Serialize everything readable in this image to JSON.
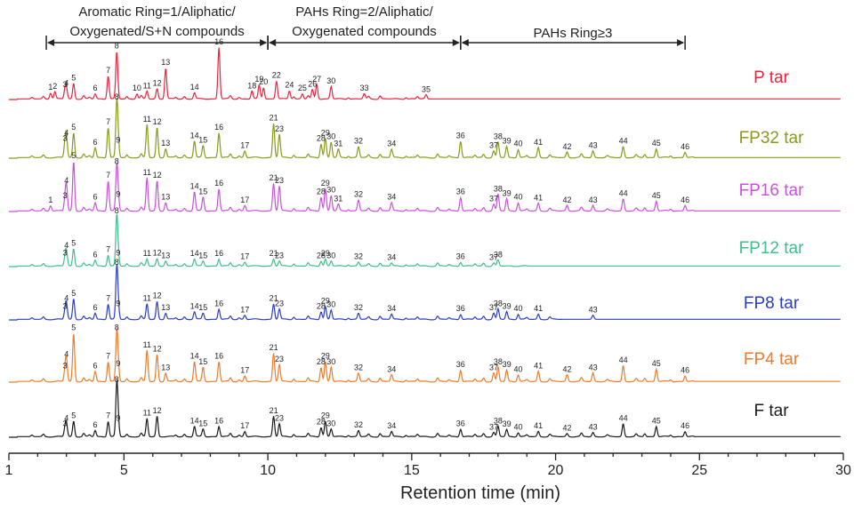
{
  "chart_data": {
    "type": "line",
    "xlabel": "Retention time (min)",
    "xlim": [
      1,
      30
    ],
    "xticks": [
      1,
      5,
      10,
      15,
      20,
      25,
      30
    ],
    "regions": [
      {
        "label_lines": [
          "Aromatic Ring=1/Aliphatic/",
          "Oxygenated/S+N compounds"
        ],
        "x_start": 2.3,
        "x_end": 10.0
      },
      {
        "label_lines": [
          "PAHs Ring=2/Aliphatic/",
          "Oxygenated compounds"
        ],
        "x_start": 10.0,
        "x_end": 16.7
      },
      {
        "label_lines": [
          "PAHs Ring≥3"
        ],
        "x_start": 16.7,
        "x_end": 24.5
      }
    ],
    "peak_times": {
      "1": 2.45,
      "2": 2.6,
      "3": 2.95,
      "4": 3.0,
      "5": 3.25,
      "6": 4.0,
      "7": 4.45,
      "8": 4.75,
      "9": 4.8,
      "10": 5.45,
      "11": 5.8,
      "12": 6.15,
      "13": 6.45,
      "14": 7.45,
      "15": 7.75,
      "16": 8.3,
      "17": 9.2,
      "18": 9.45,
      "19": 9.7,
      "20": 9.85,
      "21": 10.2,
      "22": 10.3,
      "23": 10.4,
      "24": 10.75,
      "25": 11.2,
      "26": 11.55,
      "27": 11.7,
      "28": 11.85,
      "29": 12.0,
      "30": 12.2,
      "31": 12.45,
      "32": 13.15,
      "33": 13.35,
      "34": 14.3,
      "35": 15.5,
      "36": 16.7,
      "37": 17.85,
      "38": 18.0,
      "39": 18.3,
      "40": 18.7,
      "41": 19.4,
      "42": 20.4,
      "43": 21.3,
      "44": 22.35,
      "45": 23.5,
      "46": 24.5
    },
    "series": [
      {
        "name": "P tar",
        "color": "#f2203a",
        "peaks": [
          [
            1,
            0.12
          ],
          [
            2,
            0.14
          ],
          [
            3,
            0.17
          ],
          [
            4,
            0.2
          ],
          [
            5,
            0.3
          ],
          [
            6,
            0.1
          ],
          [
            7,
            0.45
          ],
          [
            8,
            0.92
          ],
          [
            10,
            0.1
          ],
          [
            11,
            0.15
          ],
          [
            12,
            0.2
          ],
          [
            13,
            0.6
          ],
          [
            14,
            0.12
          ],
          [
            16,
            1.0
          ],
          [
            18,
            0.15
          ],
          [
            19,
            0.28
          ],
          [
            20,
            0.22
          ],
          [
            22,
            0.35
          ],
          [
            24,
            0.16
          ],
          [
            25,
            0.1
          ],
          [
            26,
            0.18
          ],
          [
            27,
            0.28
          ],
          [
            30,
            0.24
          ],
          [
            33,
            0.1
          ],
          [
            35,
            0.08
          ]
        ]
      },
      {
        "name": "FP32 tar",
        "color": "#8a9a1a",
        "peaks": [
          [
            3,
            0.25
          ],
          [
            4,
            0.35
          ],
          [
            5,
            0.45
          ],
          [
            6,
            0.18
          ],
          [
            7,
            0.55
          ],
          [
            8,
            1.0
          ],
          [
            9,
            0.22
          ],
          [
            11,
            0.6
          ],
          [
            12,
            0.55
          ],
          [
            13,
            0.16
          ],
          [
            14,
            0.3
          ],
          [
            15,
            0.22
          ],
          [
            16,
            0.45
          ],
          [
            17,
            0.12
          ],
          [
            21,
            0.62
          ],
          [
            23,
            0.42
          ],
          [
            28,
            0.25
          ],
          [
            29,
            0.35
          ],
          [
            30,
            0.28
          ],
          [
            31,
            0.15
          ],
          [
            32,
            0.2
          ],
          [
            34,
            0.15
          ],
          [
            36,
            0.3
          ],
          [
            37,
            0.12
          ],
          [
            38,
            0.28
          ],
          [
            39,
            0.2
          ],
          [
            40,
            0.15
          ],
          [
            41,
            0.18
          ],
          [
            42,
            0.1
          ],
          [
            43,
            0.12
          ],
          [
            44,
            0.2
          ],
          [
            45,
            0.16
          ],
          [
            46,
            0.1
          ]
        ]
      },
      {
        "name": "FP16 tar",
        "color": "#cc4fe0",
        "peaks": [
          [
            1,
            0.1
          ],
          [
            3,
            0.18
          ],
          [
            4,
            0.45
          ],
          [
            5,
            0.9
          ],
          [
            6,
            0.15
          ],
          [
            7,
            0.55
          ],
          [
            8,
            0.8
          ],
          [
            9,
            0.2
          ],
          [
            11,
            0.6
          ],
          [
            12,
            0.55
          ],
          [
            13,
            0.15
          ],
          [
            14,
            0.35
          ],
          [
            15,
            0.25
          ],
          [
            16,
            0.4
          ],
          [
            17,
            0.1
          ],
          [
            21,
            0.5
          ],
          [
            23,
            0.45
          ],
          [
            28,
            0.25
          ],
          [
            29,
            0.4
          ],
          [
            30,
            0.28
          ],
          [
            31,
            0.12
          ],
          [
            32,
            0.2
          ],
          [
            34,
            0.15
          ],
          [
            36,
            0.25
          ],
          [
            37,
            0.12
          ],
          [
            38,
            0.3
          ],
          [
            39,
            0.22
          ],
          [
            40,
            0.15
          ],
          [
            41,
            0.14
          ],
          [
            42,
            0.1
          ],
          [
            43,
            0.1
          ],
          [
            44,
            0.22
          ],
          [
            45,
            0.18
          ],
          [
            46,
            0.1
          ]
        ]
      },
      {
        "name": "FP12 tar",
        "color": "#3dbf8a",
        "peaks": [
          [
            3,
            0.15
          ],
          [
            4,
            0.3
          ],
          [
            5,
            0.35
          ],
          [
            6,
            0.12
          ],
          [
            7,
            0.22
          ],
          [
            8,
            1.0
          ],
          [
            9,
            0.15
          ],
          [
            11,
            0.14
          ],
          [
            12,
            0.15
          ],
          [
            13,
            0.1
          ],
          [
            14,
            0.14
          ],
          [
            15,
            0.1
          ],
          [
            16,
            0.14
          ],
          [
            17,
            0.08
          ],
          [
            21,
            0.14
          ],
          [
            23,
            0.1
          ],
          [
            28,
            0.1
          ],
          [
            29,
            0.14
          ],
          [
            30,
            0.1
          ],
          [
            32,
            0.08
          ],
          [
            34,
            0.06
          ],
          [
            36,
            0.08
          ],
          [
            37,
            0.06
          ],
          [
            38,
            0.12
          ]
        ]
      },
      {
        "name": "FP8 tar",
        "color": "#2a3ccc",
        "peaks": [
          [
            3,
            0.15
          ],
          [
            4,
            0.3
          ],
          [
            5,
            0.4
          ],
          [
            6,
            0.12
          ],
          [
            7,
            0.3
          ],
          [
            8,
            1.0
          ],
          [
            9,
            0.2
          ],
          [
            11,
            0.3
          ],
          [
            12,
            0.35
          ],
          [
            13,
            0.12
          ],
          [
            14,
            0.15
          ],
          [
            15,
            0.12
          ],
          [
            16,
            0.2
          ],
          [
            17,
            0.08
          ],
          [
            21,
            0.3
          ],
          [
            23,
            0.2
          ],
          [
            28,
            0.15
          ],
          [
            29,
            0.25
          ],
          [
            30,
            0.18
          ],
          [
            32,
            0.12
          ],
          [
            34,
            0.1
          ],
          [
            36,
            0.1
          ],
          [
            37,
            0.12
          ],
          [
            38,
            0.2
          ],
          [
            39,
            0.15
          ],
          [
            40,
            0.1
          ],
          [
            41,
            0.1
          ],
          [
            43,
            0.08
          ]
        ]
      },
      {
        "name": "FP4 tar",
        "color": "#f07a2a",
        "peaks": [
          [
            3,
            0.18
          ],
          [
            4,
            0.38
          ],
          [
            5,
            0.85
          ],
          [
            6,
            0.18
          ],
          [
            7,
            0.35
          ],
          [
            8,
            0.85
          ],
          [
            9,
            0.22
          ],
          [
            11,
            0.55
          ],
          [
            12,
            0.48
          ],
          [
            13,
            0.15
          ],
          [
            14,
            0.35
          ],
          [
            15,
            0.25
          ],
          [
            16,
            0.35
          ],
          [
            17,
            0.1
          ],
          [
            21,
            0.5
          ],
          [
            23,
            0.3
          ],
          [
            28,
            0.25
          ],
          [
            29,
            0.35
          ],
          [
            30,
            0.25
          ],
          [
            32,
            0.15
          ],
          [
            34,
            0.12
          ],
          [
            36,
            0.2
          ],
          [
            37,
            0.15
          ],
          [
            38,
            0.25
          ],
          [
            39,
            0.2
          ],
          [
            40,
            0.12
          ],
          [
            41,
            0.18
          ],
          [
            42,
            0.12
          ],
          [
            43,
            0.15
          ],
          [
            44,
            0.28
          ],
          [
            45,
            0.22
          ],
          [
            46,
            0.1
          ]
        ]
      },
      {
        "name": "F tar",
        "color": "#1a1a1a",
        "peaks": [
          [
            3,
            0.15
          ],
          [
            4,
            0.25
          ],
          [
            5,
            0.3
          ],
          [
            6,
            0.12
          ],
          [
            7,
            0.3
          ],
          [
            8,
            1.0
          ],
          [
            9,
            0.25
          ],
          [
            11,
            0.35
          ],
          [
            12,
            0.4
          ],
          [
            14,
            0.2
          ],
          [
            15,
            0.15
          ],
          [
            16,
            0.2
          ],
          [
            17,
            0.1
          ],
          [
            21,
            0.4
          ],
          [
            23,
            0.25
          ],
          [
            28,
            0.18
          ],
          [
            29,
            0.3
          ],
          [
            30,
            0.15
          ],
          [
            32,
            0.12
          ],
          [
            34,
            0.1
          ],
          [
            36,
            0.15
          ],
          [
            37,
            0.08
          ],
          [
            38,
            0.2
          ],
          [
            39,
            0.14
          ],
          [
            40,
            0.08
          ],
          [
            41,
            0.1
          ],
          [
            42,
            0.06
          ],
          [
            43,
            0.08
          ],
          [
            44,
            0.25
          ],
          [
            45,
            0.2
          ],
          [
            46,
            0.1
          ]
        ]
      }
    ]
  }
}
